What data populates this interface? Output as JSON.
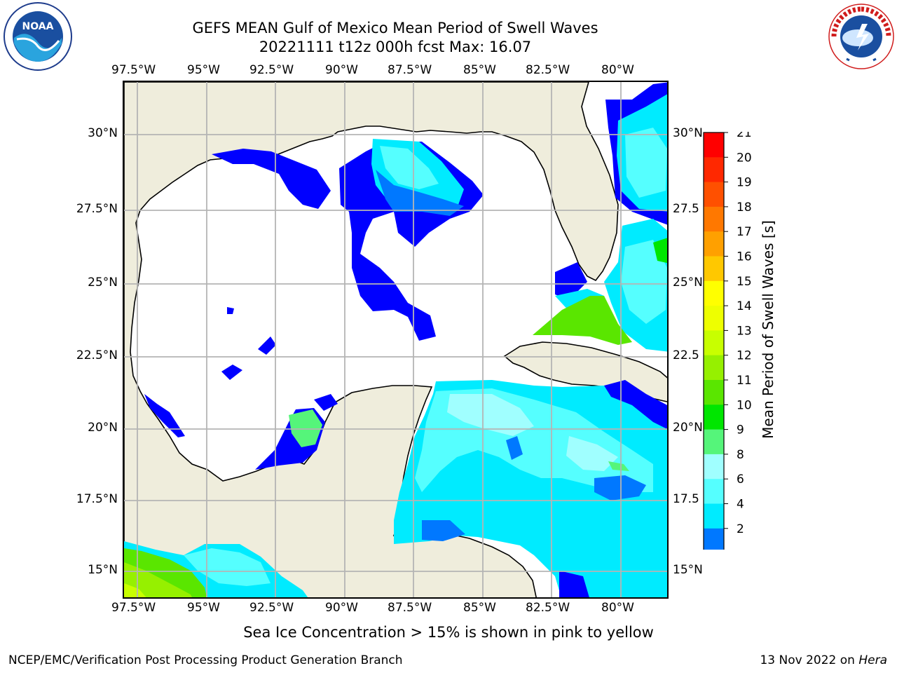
{
  "title": {
    "line1": "GEFS MEAN Gulf of Mexico Mean Period of Swell Waves",
    "line2": "20221111 t12z 000h fcst   Max: 16.07"
  },
  "map": {
    "lon_ticks": [
      "97.5°W",
      "95°W",
      "92.5°W",
      "90°W",
      "87.5°W",
      "85°W",
      "82.5°W",
      "80°W"
    ],
    "lat_ticks_left": [
      "30°N",
      "27.5°N",
      "25°N",
      "22.5°N",
      "20°N",
      "17.5°N",
      "15°N"
    ],
    "lat_ticks_right": [
      "30°N",
      "27.5",
      "25°N",
      "22.5",
      "20°N",
      "17.5",
      "15°N"
    ],
    "colors": {
      "land": "#efeddc",
      "ocean": "#ffffff",
      "grid": "#b4b4b4",
      "coast": "#000000"
    },
    "icons": [
      "noaa-logo",
      "nws-logo"
    ]
  },
  "colorbar": {
    "label": "Mean Period of Swell Waves [s]",
    "ticks": [
      "21",
      "20",
      "19",
      "18",
      "17",
      "16",
      "15",
      "14",
      "13",
      "12",
      "11",
      "10",
      "9",
      "8",
      "6",
      "4",
      "2"
    ],
    "colors": [
      "#ff0000",
      "#ff2800",
      "#ff5000",
      "#ff7800",
      "#ffa000",
      "#ffc800",
      "#ffff00",
      "#eeff00",
      "#c8ff00",
      "#96f000",
      "#5ae600",
      "#00e600",
      "#55f57a",
      "#a0ffff",
      "#55ffff",
      "#00ebff",
      "#0078ff",
      "#0000ff"
    ]
  },
  "note": "Sea Ice Concentration > 15% is shown in pink to yellow",
  "footer": {
    "left": "NCEP/EMC/Verification Post Processing Product Generation Branch",
    "date": "13 Nov 2022 on",
    "host": "Hera"
  }
}
